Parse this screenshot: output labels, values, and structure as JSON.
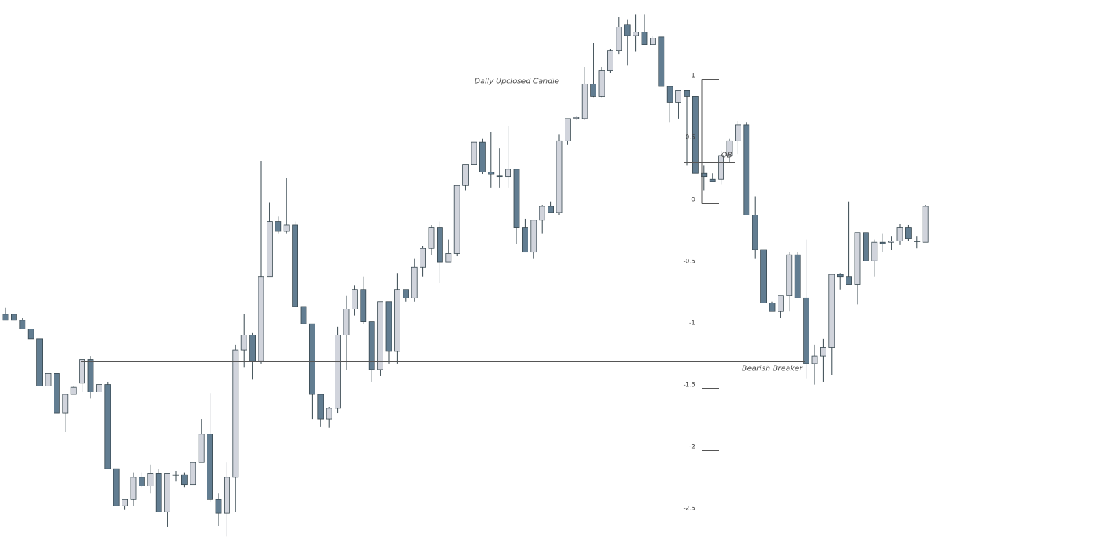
{
  "chart_data": {
    "type": "candlestick",
    "colors": {
      "up_fill": "#d1d4dc",
      "down_fill": "#627d91",
      "outline": "#37474f",
      "line": "#555555"
    },
    "annotations": {
      "daily_upclosed": "Daily Upclosed Candle",
      "ob": "OB",
      "bearish_breaker": "Bearish Breaker"
    },
    "annotation_levels": {
      "daily_upclosed": 0.93,
      "ob": 0.33,
      "bearish_breaker": -1.28
    },
    "fib_labels": [
      "1",
      "0.5",
      "0",
      "-0.5",
      "-1",
      "-1.5",
      "-2",
      "-2.5"
    ],
    "fib_levels": [
      1,
      0.5,
      0,
      -0.5,
      -1,
      -1.5,
      -2,
      -2.5
    ],
    "y_range": [
      -2.77,
      1.55
    ],
    "candles": [
      {
        "o": -0.9,
        "h": -0.85,
        "l": -0.95,
        "c": -0.95
      },
      {
        "o": -0.9,
        "h": -0.9,
        "l": -0.95,
        "c": -0.95
      },
      {
        "o": -0.95,
        "h": -0.93,
        "l": -1.02,
        "c": -1.02
      },
      {
        "o": -1.02,
        "h": -1.02,
        "l": -1.1,
        "c": -1.1
      },
      {
        "o": -1.1,
        "h": -1.1,
        "l": -1.48,
        "c": -1.48
      },
      {
        "o": -1.48,
        "h": -1.38,
        "l": -1.48,
        "c": -1.38
      },
      {
        "o": -1.38,
        "h": -1.38,
        "l": -1.7,
        "c": -1.7
      },
      {
        "o": -1.7,
        "h": -1.55,
        "l": -1.85,
        "c": -1.55
      },
      {
        "o": -1.55,
        "h": -1.48,
        "l": -1.55,
        "c": -1.49
      },
      {
        "o": -1.46,
        "h": -1.27,
        "l": -1.53,
        "c": -1.27
      },
      {
        "o": -1.27,
        "h": -1.24,
        "l": -1.58,
        "c": -1.53
      },
      {
        "o": -1.53,
        "h": -1.47,
        "l": -1.53,
        "c": -1.47
      },
      {
        "o": -1.47,
        "h": -1.45,
        "l": -2.15,
        "c": -2.15
      },
      {
        "o": -2.15,
        "h": -2.15,
        "l": -2.45,
        "c": -2.45
      },
      {
        "o": -2.45,
        "h": -2.4,
        "l": -2.48,
        "c": -2.4
      },
      {
        "o": -2.4,
        "h": -2.18,
        "l": -2.45,
        "c": -2.22
      },
      {
        "o": -2.22,
        "h": -2.18,
        "l": -2.3,
        "c": -2.29
      },
      {
        "o": -2.29,
        "h": -2.12,
        "l": -2.35,
        "c": -2.19
      },
      {
        "o": -2.19,
        "h": -2.15,
        "l": -2.5,
        "c": -2.5
      },
      {
        "o": -2.5,
        "h": -2.19,
        "l": -2.62,
        "c": -2.19
      },
      {
        "o": -2.2,
        "h": -2.17,
        "l": -2.25,
        "c": -2.2
      },
      {
        "o": -2.2,
        "h": -2.18,
        "l": -2.3,
        "c": -2.28
      },
      {
        "o": -2.28,
        "h": -2.1,
        "l": -2.28,
        "c": -2.1
      },
      {
        "o": -2.1,
        "h": -1.75,
        "l": -2.1,
        "c": -1.87
      },
      {
        "o": -1.87,
        "h": -1.54,
        "l": -2.42,
        "c": -2.4
      },
      {
        "o": -2.4,
        "h": -2.35,
        "l": -2.61,
        "c": -2.51
      },
      {
        "o": -2.51,
        "h": -2.1,
        "l": -2.7,
        "c": -2.22
      },
      {
        "o": -2.22,
        "h": -1.15,
        "l": -2.5,
        "c": -1.19
      },
      {
        "o": -1.19,
        "h": -0.9,
        "l": -1.33,
        "c": -1.07
      },
      {
        "o": -1.07,
        "h": -1.05,
        "l": -1.43,
        "c": -1.28
      },
      {
        "o": -1.28,
        "h": 0.34,
        "l": -1.3,
        "c": -0.6
      },
      {
        "o": -0.6,
        "h": 0.0,
        "l": -0.6,
        "c": -0.15
      },
      {
        "o": -0.15,
        "h": -0.11,
        "l": -0.25,
        "c": -0.23
      },
      {
        "o": -0.23,
        "h": 0.2,
        "l": -0.25,
        "c": -0.18
      },
      {
        "o": -0.18,
        "h": -0.15,
        "l": -0.84,
        "c": -0.84
      },
      {
        "o": -0.84,
        "h": -0.84,
        "l": -0.98,
        "c": -0.98
      },
      {
        "o": -0.98,
        "h": -0.98,
        "l": -1.75,
        "c": -1.55
      },
      {
        "o": -1.55,
        "h": -1.55,
        "l": -1.81,
        "c": -1.75
      },
      {
        "o": -1.75,
        "h": -1.65,
        "l": -1.82,
        "c": -1.66
      },
      {
        "o": -1.66,
        "h": -1.0,
        "l": -1.7,
        "c": -1.07
      },
      {
        "o": -1.07,
        "h": -0.75,
        "l": -1.35,
        "c": -0.86
      },
      {
        "o": -0.86,
        "h": -0.67,
        "l": -0.91,
        "c": -0.7
      },
      {
        "o": -0.7,
        "h": -0.6,
        "l": -0.98,
        "c": -0.96
      },
      {
        "o": -0.96,
        "h": -0.96,
        "l": -1.45,
        "c": -1.35
      },
      {
        "o": -1.35,
        "h": -0.8,
        "l": -1.4,
        "c": -0.8
      },
      {
        "o": -0.8,
        "h": -0.8,
        "l": -1.3,
        "c": -1.2
      },
      {
        "o": -1.2,
        "h": -0.57,
        "l": -1.3,
        "c": -0.7
      },
      {
        "o": -0.7,
        "h": -0.7,
        "l": -0.8,
        "c": -0.77
      },
      {
        "o": -0.77,
        "h": -0.45,
        "l": -0.8,
        "c": -0.52
      },
      {
        "o": -0.52,
        "h": -0.35,
        "l": -0.6,
        "c": -0.37
      },
      {
        "o": -0.37,
        "h": -0.18,
        "l": -0.42,
        "c": -0.2
      },
      {
        "o": -0.2,
        "h": -0.15,
        "l": -0.65,
        "c": -0.48
      },
      {
        "o": -0.48,
        "h": -0.3,
        "l": -0.48,
        "c": -0.41
      },
      {
        "o": -0.41,
        "h": 0.14,
        "l": -0.43,
        "c": 0.14
      },
      {
        "o": 0.14,
        "h": 0.31,
        "l": 0.1,
        "c": 0.31
      },
      {
        "o": 0.31,
        "h": 0.49,
        "l": 0.31,
        "c": 0.49
      },
      {
        "o": 0.49,
        "h": 0.52,
        "l": 0.23,
        "c": 0.25
      },
      {
        "o": 0.25,
        "h": 0.57,
        "l": 0.12,
        "c": 0.23
      },
      {
        "o": 0.22,
        "h": 0.44,
        "l": 0.12,
        "c": 0.21
      },
      {
        "o": 0.21,
        "h": 0.62,
        "l": 0.12,
        "c": 0.27
      },
      {
        "o": 0.27,
        "h": 0.27,
        "l": -0.33,
        "c": -0.2
      },
      {
        "o": -0.2,
        "h": -0.13,
        "l": -0.4,
        "c": -0.4
      },
      {
        "o": -0.4,
        "h": -0.18,
        "l": -0.45,
        "c": -0.14
      },
      {
        "o": -0.14,
        "h": -0.02,
        "l": -0.25,
        "c": -0.03
      },
      {
        "o": -0.03,
        "h": 0.01,
        "l": -0.08,
        "c": -0.08
      },
      {
        "o": -0.08,
        "h": 0.55,
        "l": -0.1,
        "c": 0.5
      },
      {
        "o": 0.5,
        "h": 0.68,
        "l": 0.47,
        "c": 0.68
      },
      {
        "o": 0.68,
        "h": 0.7,
        "l": 0.67,
        "c": 0.69
      },
      {
        "o": 0.68,
        "h": 1.1,
        "l": 0.67,
        "c": 0.96
      },
      {
        "o": 0.96,
        "h": 1.29,
        "l": 0.85,
        "c": 0.86
      },
      {
        "o": 0.86,
        "h": 1.1,
        "l": 0.85,
        "c": 1.07
      },
      {
        "o": 1.07,
        "h": 1.24,
        "l": 1.05,
        "c": 1.23
      },
      {
        "o": 1.23,
        "h": 1.5,
        "l": 1.2,
        "c": 1.42
      },
      {
        "o": 1.44,
        "h": 1.48,
        "l": 1.11,
        "c": 1.35
      },
      {
        "o": 1.35,
        "h": 1.52,
        "l": 1.22,
        "c": 1.38
      },
      {
        "o": 1.38,
        "h": 1.52,
        "l": 1.32,
        "c": 1.28
      },
      {
        "o": 1.28,
        "h": 1.35,
        "l": 1.3,
        "c": 1.33
      },
      {
        "o": 1.34,
        "h": 1.34,
        "l": 0.94,
        "c": 0.94
      },
      {
        "o": 0.94,
        "h": 0.94,
        "l": 0.65,
        "c": 0.81
      },
      {
        "o": 0.81,
        "h": 0.9,
        "l": 0.68,
        "c": 0.91
      },
      {
        "o": 0.91,
        "h": 0.91,
        "l": 0.3,
        "c": 0.86
      },
      {
        "o": 0.86,
        "h": 0.86,
        "l": 0.24,
        "c": 0.24
      },
      {
        "o": 0.24,
        "h": 0.3,
        "l": 0.1,
        "c": 0.21
      },
      {
        "o": 0.19,
        "h": 0.24,
        "l": 0.17,
        "c": 0.17
      },
      {
        "o": 0.19,
        "h": 0.42,
        "l": 0.15,
        "c": 0.38
      },
      {
        "o": 0.38,
        "h": 0.52,
        "l": 0.32,
        "c": 0.5
      },
      {
        "o": 0.5,
        "h": 0.66,
        "l": 0.39,
        "c": 0.63
      },
      {
        "o": 0.63,
        "h": 0.65,
        "l": -0.1,
        "c": -0.1
      },
      {
        "o": -0.1,
        "h": 0.05,
        "l": -0.45,
        "c": -0.38
      },
      {
        "o": -0.38,
        "h": -0.38,
        "l": -0.81,
        "c": -0.81
      },
      {
        "o": -0.81,
        "h": -0.8,
        "l": -0.88,
        "c": -0.88
      },
      {
        "o": -0.88,
        "h": -0.75,
        "l": -0.93,
        "c": -0.75
      },
      {
        "o": -0.75,
        "h": -0.4,
        "l": -0.88,
        "c": -0.42
      },
      {
        "o": -0.42,
        "h": -0.4,
        "l": -0.77,
        "c": -0.77
      },
      {
        "o": -0.77,
        "h": -0.3,
        "l": -1.42,
        "c": -1.3
      },
      {
        "o": -1.3,
        "h": -1.15,
        "l": -1.47,
        "c": -1.24
      },
      {
        "o": -1.24,
        "h": -1.1,
        "l": -1.45,
        "c": -1.17
      },
      {
        "o": -1.17,
        "h": -0.59,
        "l": -1.39,
        "c": -0.58
      },
      {
        "o": -0.58,
        "h": -0.57,
        "l": -0.7,
        "c": -0.6
      },
      {
        "o": -0.6,
        "h": 0.01,
        "l": -0.66,
        "c": -0.66
      },
      {
        "o": -0.66,
        "h": -0.24,
        "l": -0.82,
        "c": -0.24
      },
      {
        "o": -0.24,
        "h": -0.24,
        "l": -0.47,
        "c": -0.47
      },
      {
        "o": -0.47,
        "h": -0.3,
        "l": -0.6,
        "c": -0.32
      },
      {
        "o": -0.32,
        "h": -0.25,
        "l": -0.4,
        "c": -0.33
      },
      {
        "o": -0.32,
        "h": -0.27,
        "l": -0.38,
        "c": -0.31
      },
      {
        "o": -0.31,
        "h": -0.17,
        "l": -0.34,
        "c": -0.2
      },
      {
        "o": -0.2,
        "h": -0.18,
        "l": -0.31,
        "c": -0.29
      },
      {
        "o": -0.31,
        "h": -0.27,
        "l": -0.37,
        "c": -0.31
      },
      {
        "o": -0.32,
        "h": -0.02,
        "l": -0.32,
        "c": -0.03
      }
    ]
  }
}
